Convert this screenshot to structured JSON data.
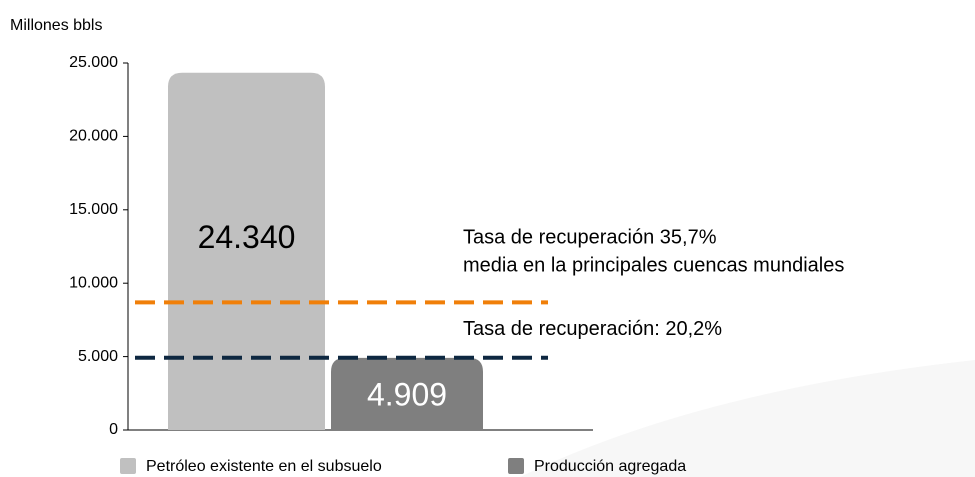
{
  "chart_data": {
    "type": "bar",
    "y_label": "Millones bbls",
    "categories": [
      null,
      null
    ],
    "series": [
      {
        "name": "Petróleo existente en el subsuelo",
        "color": "#c0c0c0",
        "values": [
          24340,
          null
        ],
        "value_labels": [
          "24.340",
          null
        ],
        "label_color": "#000000"
      },
      {
        "name": "Producción agregada",
        "color": "#7f7f7f",
        "values": [
          null,
          4909
        ],
        "value_labels": [
          null,
          "4.909"
        ],
        "label_color": "#ffffff"
      }
    ],
    "ylim": [
      0,
      25000
    ],
    "yticks": [
      0,
      {
        "value": 5000,
        "label": "5.000"
      },
      {
        "value": 10000,
        "label": "10.000"
      },
      {
        "value": 15000,
        "label": "15.000"
      },
      {
        "value": 20000,
        "label": "20.000"
      },
      {
        "value": 25000,
        "label": "25.000"
      }
    ],
    "reference_lines": [
      {
        "value": 8690,
        "color": "#f07f09",
        "annotation": [
          "Tasa de recuperación 35,7%",
          "media en la principales cuencas mundiales"
        ]
      },
      {
        "value": 4920,
        "color": "#0e2841",
        "annotation": [
          "Tasa de recuperación:  20,2%"
        ]
      }
    ],
    "legend": "bottom"
  }
}
